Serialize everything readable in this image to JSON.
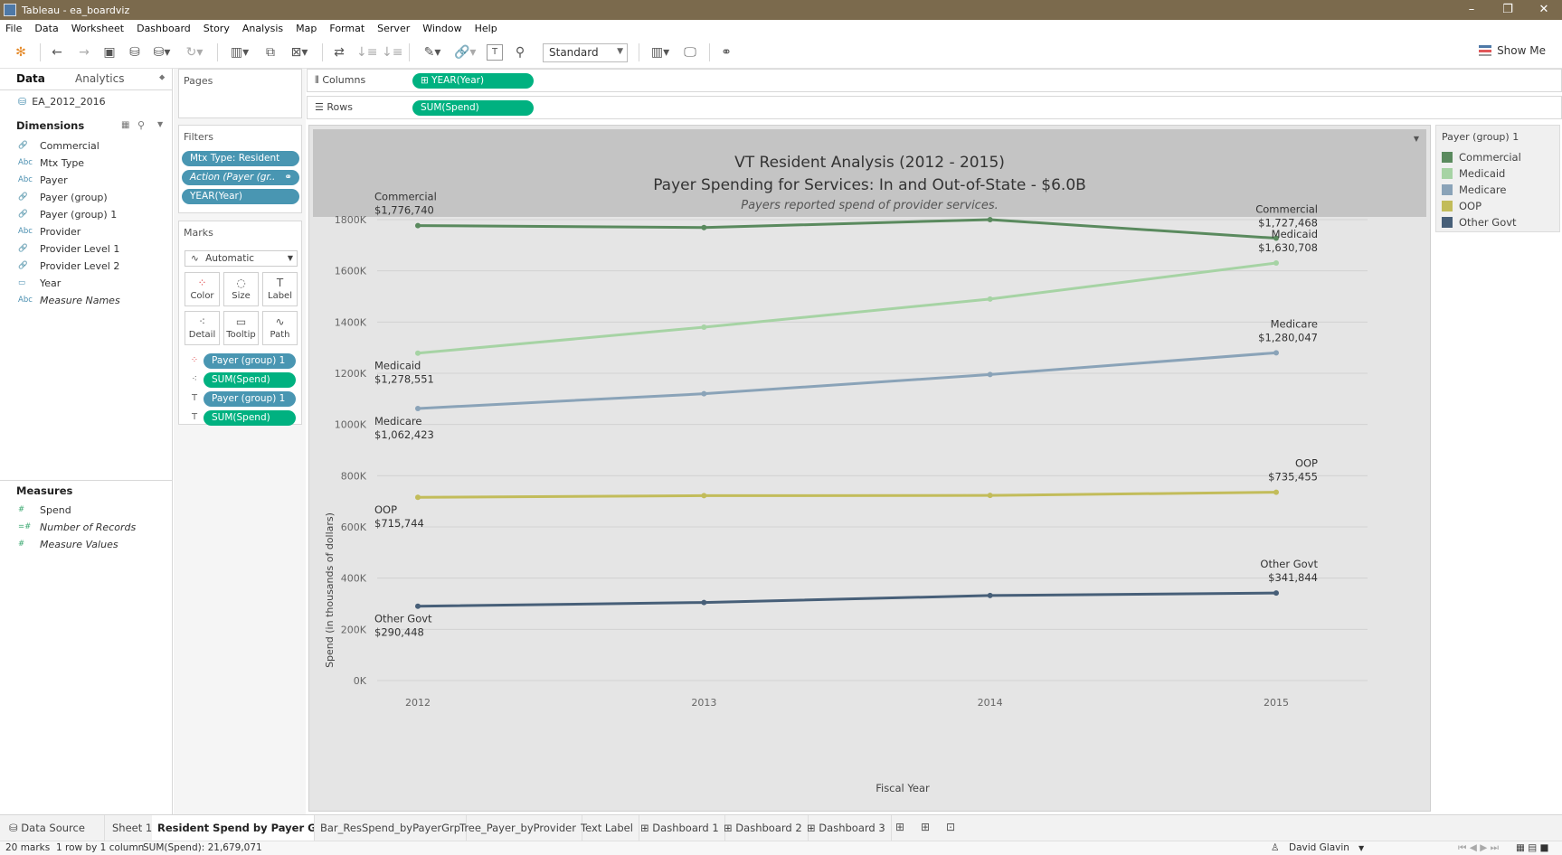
{
  "window": {
    "title": "Tableau - ea_boardviz",
    "controls": [
      "–",
      "❐",
      "✕"
    ]
  },
  "menu": [
    "File",
    "Data",
    "Worksheet",
    "Dashboard",
    "Story",
    "Analysis",
    "Map",
    "Format",
    "Server",
    "Window",
    "Help"
  ],
  "toolbar": {
    "fit": "Standard",
    "show_me": "Show Me"
  },
  "data_pane": {
    "tabs": {
      "data": "Data",
      "analytics": "Analytics"
    },
    "datasource": "EA_2012_2016",
    "dimensions_title": "Dimensions",
    "dimensions": [
      {
        "type": "🔗",
        "name": "Commercial"
      },
      {
        "type": "Abc",
        "name": "Mtx Type"
      },
      {
        "type": "Abc",
        "name": "Payer"
      },
      {
        "type": "🔗",
        "name": "Payer (group)"
      },
      {
        "type": "🔗",
        "name": "Payer (group) 1"
      },
      {
        "type": "Abc",
        "name": "Provider"
      },
      {
        "type": "🔗",
        "name": "Provider Level 1"
      },
      {
        "type": "🔗",
        "name": "Provider Level 2"
      },
      {
        "type": "▭",
        "name": "Year"
      },
      {
        "type": "Abc",
        "name": "Measure Names"
      }
    ],
    "measures_title": "Measures",
    "measures": [
      {
        "type": "#",
        "name": "Spend"
      },
      {
        "type": "=#",
        "name": "Number of Records"
      },
      {
        "type": "#",
        "name": "Measure Values"
      }
    ]
  },
  "cards": {
    "pages_title": "Pages",
    "filters_title": "Filters",
    "filters": [
      "Mtx Type: Resident",
      "Action (Payer (gr..",
      "YEAR(Year)"
    ],
    "marks_title": "Marks",
    "mark_type": "Automatic",
    "mark_buttons": [
      "Color",
      "Size",
      "Label",
      "Detail",
      "Tooltip",
      "Path"
    ],
    "mark_pills": [
      "Payer (group) 1",
      "SUM(Spend)",
      "Payer (group) 1",
      "SUM(Spend)"
    ]
  },
  "shelves": {
    "columns_label": "Columns",
    "columns_pill": "⊞ YEAR(Year)",
    "rows_label": "Rows",
    "rows_pill": "SUM(Spend)"
  },
  "view_title": {
    "line1": "VT Resident Analysis (2012 - 2015)",
    "line2": "Payer Spending for Services: In and Out-of-State - $6.0B",
    "line3": "Payers reported spend of provider services."
  },
  "legend": {
    "title": "Payer (group) 1",
    "items": [
      {
        "name": "Commercial",
        "color": "#5a8a5e"
      },
      {
        "name": "Medicaid",
        "color": "#a6d3a4"
      },
      {
        "name": "Medicare",
        "color": "#8aa3b8"
      },
      {
        "name": "OOP",
        "color": "#c2bc5a"
      },
      {
        "name": "Other Govt",
        "color": "#475f78"
      }
    ]
  },
  "chart_data": {
    "type": "line",
    "x": [
      2012,
      2013,
      2014,
      2015
    ],
    "xlabel": "Fiscal Year",
    "ylabel": "Spend (in thousands of dollars)",
    "ylim": [
      0,
      1800
    ],
    "yticks": [
      "0K",
      "200K",
      "400K",
      "600K",
      "800K",
      "1000K",
      "1200K",
      "1400K",
      "1600K",
      "1800K"
    ],
    "grid": true,
    "legend_position": "right",
    "series": [
      {
        "name": "Commercial",
        "color": "#5a8a5e",
        "values": [
          1776.74,
          1769,
          1800,
          1727.468
        ],
        "first_label": "$1,776,740",
        "last_label": "$1,727,468"
      },
      {
        "name": "Medicaid",
        "color": "#a6d3a4",
        "values": [
          1278.551,
          1380,
          1490,
          1630.708
        ],
        "first_label": "$1,278,551",
        "last_label": "$1,630,708"
      },
      {
        "name": "Medicare",
        "color": "#8aa3b8",
        "values": [
          1062.423,
          1120,
          1195,
          1280.047
        ],
        "first_label": "$1,062,423",
        "last_label": "$1,280,047"
      },
      {
        "name": "OOP",
        "color": "#c2bc5a",
        "values": [
          715.744,
          722,
          723,
          735.455
        ],
        "first_label": "$715,744",
        "last_label": "$735,455"
      },
      {
        "name": "Other Govt",
        "color": "#475f78",
        "values": [
          290.448,
          305,
          332,
          341.844
        ],
        "first_label": "$290,448",
        "last_label": "$341,844"
      }
    ]
  },
  "sheet_tabs": {
    "data_source": "Data Source",
    "tabs": [
      "Sheet 1",
      "Resident Spend by Payer Grou...",
      "Bar_ResSpend_byPayerGrp",
      "Tree_Payer_byProvider",
      "Text Label",
      "Dashboard 1",
      "Dashboard 2",
      "Dashboard 3"
    ]
  },
  "status": {
    "marks": "20 marks",
    "rowscols": "1 row by 1 column",
    "sum": "SUM(Spend): 21,679,071",
    "user": "David Glavin"
  }
}
